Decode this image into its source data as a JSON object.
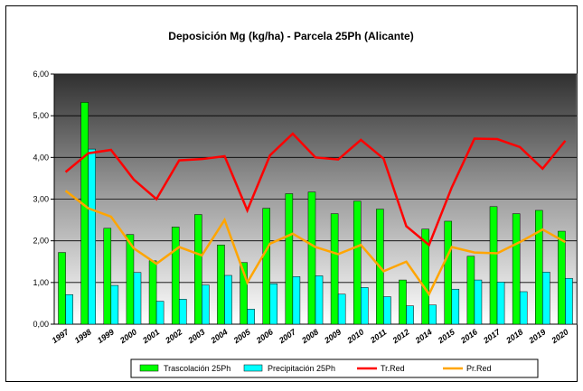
{
  "chart_data": {
    "type": "bar-line",
    "title": "Deposición Mg (kg/ha) - Parcela 25Ph (Alicante)",
    "categories": [
      "1997",
      "1998",
      "1999",
      "2000",
      "2001",
      "2002",
      "2003",
      "2004",
      "2005",
      "2006",
      "2007",
      "2008",
      "2009",
      "2010",
      "2011",
      "2012",
      "2014",
      "2015",
      "2016",
      "2017",
      "2018",
      "2019",
      "2020"
    ],
    "series": [
      {
        "name": "Trascolación  25Ph",
        "color": "#00ff00",
        "mark": "bar",
        "values": [
          1.72,
          5.32,
          2.3,
          2.15,
          1.52,
          2.33,
          2.63,
          1.9,
          1.48,
          2.78,
          3.13,
          3.17,
          2.65,
          2.95,
          2.76,
          1.06,
          2.28,
          2.47,
          1.63,
          2.82,
          2.65,
          2.73,
          2.23
        ]
      },
      {
        "name": "Precipitación 25Ph",
        "color": "#00ffff",
        "mark": "bar",
        "values": [
          0.71,
          4.2,
          0.93,
          1.24,
          0.55,
          0.6,
          0.94,
          1.17,
          0.36,
          0.97,
          1.14,
          1.16,
          0.72,
          0.88,
          0.66,
          0.44,
          0.46,
          0.84,
          1.06,
          1.01,
          0.78,
          1.25,
          1.1
        ]
      },
      {
        "name": "Tr.Red",
        "color": "#ff0000",
        "mark": "line",
        "values": [
          3.65,
          4.1,
          4.18,
          3.47,
          3.0,
          3.93,
          3.96,
          4.03,
          2.73,
          4.05,
          4.57,
          4.0,
          3.95,
          4.42,
          3.97,
          2.35,
          1.9,
          3.28,
          4.45,
          4.44,
          4.25,
          3.73,
          4.4
        ]
      },
      {
        "name": "Pr.Red",
        "color": "#ffa500",
        "mark": "line",
        "values": [
          3.2,
          2.78,
          2.58,
          1.82,
          1.45,
          1.85,
          1.65,
          2.5,
          1.0,
          1.93,
          2.17,
          1.85,
          1.68,
          1.9,
          1.27,
          1.5,
          0.72,
          1.85,
          1.72,
          1.7,
          1.97,
          2.27,
          1.97
        ]
      }
    ],
    "ylim": [
      0,
      6
    ],
    "yticks": [
      {
        "value": 0,
        "label": "0,00"
      },
      {
        "value": 1,
        "label": "1,00"
      },
      {
        "value": 2,
        "label": "2,00"
      },
      {
        "value": 3,
        "label": "3,00"
      },
      {
        "value": 4,
        "label": "4,00"
      },
      {
        "value": 5,
        "label": "5,00"
      },
      {
        "value": 6,
        "label": "6,00"
      }
    ],
    "grid": true,
    "legend": "bottom"
  }
}
